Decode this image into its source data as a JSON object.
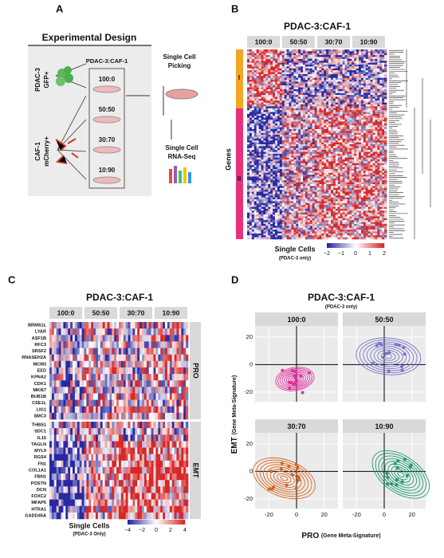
{
  "panel_a": {
    "label": "A",
    "title": "Experimental Design",
    "ratio_header": "PDAC-3:CAF-1",
    "cell_line_1": [
      "PDAC-3",
      "GFP+"
    ],
    "cell_line_2": [
      "CAF-1",
      "mCherry+"
    ],
    "ratios": [
      "100:0",
      "50:50",
      "30:70",
      "10:90"
    ],
    "step_1": [
      "Single Cell",
      "Picking"
    ],
    "step_2": [
      "Single Cell",
      "RNA-Seq"
    ]
  },
  "panel_b": {
    "label": "B",
    "title": "PDAC-3:CAF-1",
    "groups": [
      "100:0",
      "50:50",
      "30:70",
      "10:90"
    ],
    "clusters": [
      "I",
      "II"
    ],
    "y_label": "Genes",
    "x_label": "Single Cells",
    "x_sublabel": "(PDAC-3 only)",
    "legend_ticks": [
      "−2",
      "−1",
      "0",
      "1",
      "2"
    ]
  },
  "panel_c": {
    "label": "C",
    "title": "PDAC-3:CAF-1",
    "groups": [
      "100:0",
      "50:50",
      "30:70",
      "10:90"
    ],
    "pro_genes": [
      "BRMS1L",
      "LYAR",
      "ASF1B",
      "RFC3",
      "SRSF2",
      "RNASEH2A",
      "MCM3",
      "EED",
      "KPNA2",
      "CDK1",
      "MKI67",
      "BUB1B",
      "CSE1L",
      "LIG1",
      "SMC3"
    ],
    "emt_genes": [
      "THBS1",
      "SDC1",
      "IL15",
      "TAGLN",
      "MYL9",
      "RGS4",
      "FN1",
      "COL1A1",
      "FBN1",
      "POSTN",
      "DCN",
      "FOXC2",
      "MFAP5",
      "HTRA1",
      "GADD45A"
    ],
    "modules": [
      "PRO",
      "EMT"
    ],
    "x_label": "Single Cells",
    "x_sublabel": "(PDAC-3 Only)",
    "legend_ticks": [
      "−4",
      "−2",
      "0",
      "2",
      "4"
    ]
  },
  "panel_d": {
    "label": "D",
    "title": "PDAC-3:CAF-1",
    "subtitle": "(PDAC-3 only)",
    "facets": [
      "100:0",
      "50:50",
      "30:70",
      "10:90"
    ],
    "colors": [
      "#e0309a",
      "#7a74c8",
      "#d8641e",
      "#1f9a72"
    ],
    "xlim": [
      -30,
      30
    ],
    "ylim": [
      -27,
      28
    ],
    "xticks": [
      -20,
      0,
      20
    ],
    "yticks": [
      20,
      0,
      -20
    ],
    "y_label": "EMT",
    "y_label_note": "(Gene Meta-Signature)",
    "x_label": "PRO",
    "x_label_note": "(Gene Meta-Signature)"
  }
}
